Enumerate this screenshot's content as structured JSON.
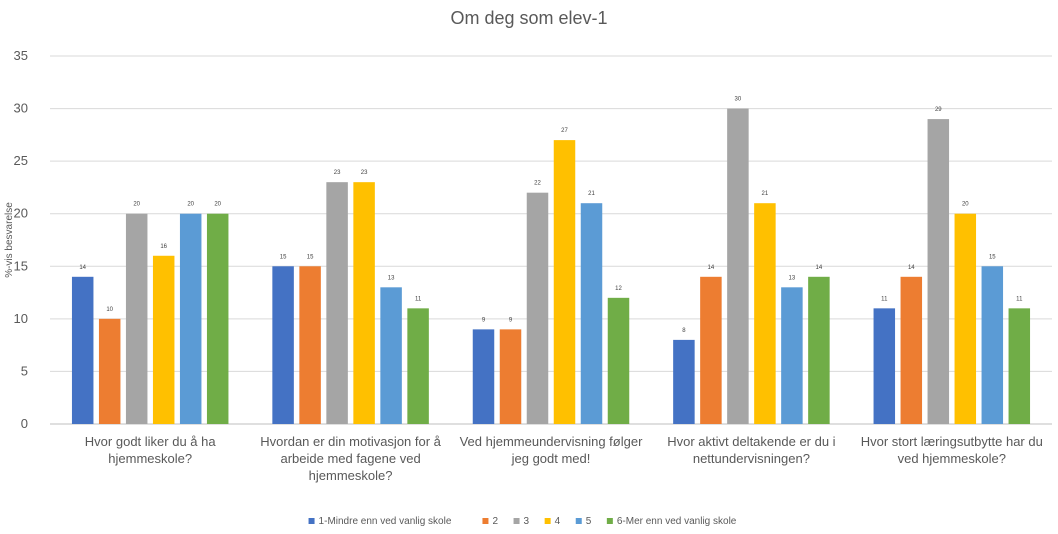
{
  "chart_data": {
    "type": "bar",
    "title": "Om deg som elev-1",
    "ylabel": "%-vis besvarelse",
    "xlabel": "",
    "ylim": [
      0,
      35
    ],
    "yticks": [
      "0",
      "5",
      "10",
      "15",
      "20",
      "25",
      "30",
      "35"
    ],
    "grid": true,
    "legend_position": "bottom",
    "categories": [
      [
        "Hvor godt liker du å ha",
        "hjemmeskole?"
      ],
      [
        "Hvordan er din motivasjon for å",
        "arbeide med fagene ved",
        "hjemmeskole?"
      ],
      [
        "Ved hjemmeundervisning følger",
        "jeg godt med!"
      ],
      [
        "Hvor aktivt deltakende er du i",
        "nettundervisningen?"
      ],
      [
        "Hvor stort læringsutbytte har du",
        "ved hjemmeskole?"
      ]
    ],
    "series": [
      {
        "name": "1-Mindre enn ved vanlig skole",
        "color": "#4472C4",
        "values": [
          14,
          15,
          9,
          8,
          11
        ]
      },
      {
        "name": "2",
        "color": "#ED7D31",
        "values": [
          10,
          15,
          9,
          14,
          14
        ]
      },
      {
        "name": "3",
        "color": "#A5A5A5",
        "values": [
          20,
          23,
          22,
          30,
          29
        ]
      },
      {
        "name": "4",
        "color": "#FFC000",
        "values": [
          16,
          23,
          27,
          21,
          20
        ]
      },
      {
        "name": "5",
        "color": "#5B9BD5",
        "values": [
          20,
          13,
          21,
          13,
          15
        ]
      },
      {
        "name": "6-Mer enn ved vanlig skole",
        "color": "#70AD47",
        "values": [
          20,
          11,
          12,
          14,
          11
        ]
      }
    ]
  }
}
